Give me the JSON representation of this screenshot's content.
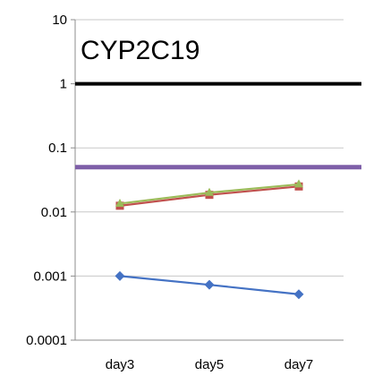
{
  "chart_data": {
    "type": "line",
    "title": "CYP2C19",
    "xlabel": "",
    "ylabel": "",
    "y_scale": "log",
    "ylim": [
      0.0001,
      10
    ],
    "y_ticks": [
      "10",
      "1",
      "0.1",
      "0.01",
      "0.001",
      "0.0001"
    ],
    "y_tick_values": [
      10,
      1,
      0.1,
      0.01,
      0.001,
      0.0001
    ],
    "grid": true,
    "legend": "none",
    "categories": [
      "day3",
      "day5",
      "day7"
    ],
    "series": [
      {
        "color": "#4472C4",
        "marker": "diamond",
        "values": [
          0.001,
          0.00073,
          0.00052
        ]
      },
      {
        "color": "#C0504D",
        "marker": "square",
        "values": [
          0.0125,
          0.0185,
          0.025
        ]
      },
      {
        "color": "#9BBB59",
        "marker": "triangle",
        "values": [
          0.0135,
          0.02,
          0.027
        ]
      }
    ],
    "reference_lines": [
      {
        "value": 1,
        "color": "#000000"
      },
      {
        "value": 0.05,
        "color": "#7E5FA8"
      }
    ]
  }
}
